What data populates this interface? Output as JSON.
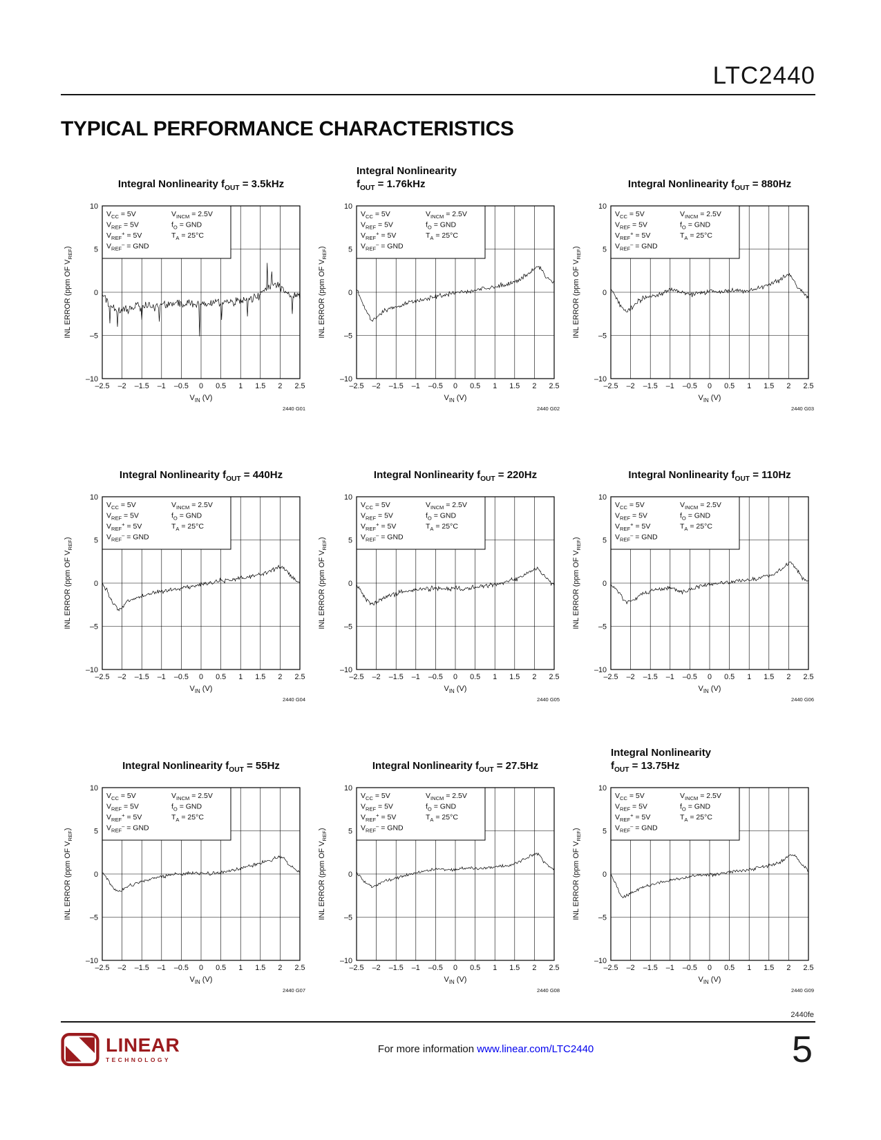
{
  "colors": {
    "accent_red": "#9b1b1e",
    "link_blue": "#0000ee"
  },
  "page": {
    "header": {
      "part_number": "LTC2440"
    },
    "section_title": "TYPICAL PERFORMANCE CHARACTERISTICS",
    "footer": {
      "doc_code": "2440fe",
      "info_text": "For more information ",
      "info_link": "www.linear.com/LTC2440",
      "page_number": "5",
      "logo_primary": "LINEAR",
      "logo_secondary": "TECHNOLOGY"
    }
  },
  "conditions": {
    "left": [
      "V_{CC} = 5V",
      "V_{REF} = 5V",
      "V_{REF}^{+} = 5V",
      "V_{REF}^{–} = GND"
    ],
    "right": [
      "V_{INCM} = 2.5V",
      "f_{O} = GND",
      "T_{A} = 25°C"
    ]
  },
  "axes": {
    "xlabel": "V_{IN} (V)",
    "ylabel": "INL ERROR (ppm OF V_{REF})",
    "xlim": [
      -2.5,
      2.5
    ],
    "ylim": [
      -10,
      10
    ],
    "xticks": [
      -2.5,
      -2,
      -1.5,
      -1,
      -0.5,
      0,
      0.5,
      1,
      1.5,
      2,
      2.5
    ],
    "xtick_labels": [
      "–2.5",
      "–2",
      "–1.5",
      "–1",
      "–0.5",
      "0",
      "0.5",
      "1",
      "1.5",
      "2",
      "2.5"
    ],
    "yticks": [
      10,
      5,
      0,
      -5,
      -10
    ],
    "ytick_labels": [
      "10",
      "5",
      "0",
      "–5",
      "–10"
    ],
    "grid": true
  },
  "chart_data": [
    {
      "type": "line",
      "fig_id": "2440 G01",
      "title_lines": [
        "Integral Nonlinearity f_{OUT} = 3.5kHz"
      ],
      "keypoints": [
        [
          -2.5,
          -0.4
        ],
        [
          -2.35,
          -1.3
        ],
        [
          -2.2,
          -1.9
        ],
        [
          -2.05,
          -2.2
        ],
        [
          -1.9,
          -2.1
        ],
        [
          -1.75,
          -1.8
        ],
        [
          -1.6,
          -1.6
        ],
        [
          -1.45,
          -1.7
        ],
        [
          -1.3,
          -1.5
        ],
        [
          -1.15,
          -1.6
        ],
        [
          -1.0,
          -1.4
        ],
        [
          -0.8,
          -1.5
        ],
        [
          -0.6,
          -1.3
        ],
        [
          -0.4,
          -1.4
        ],
        [
          -0.2,
          -1.3
        ],
        [
          0,
          -1.3
        ],
        [
          0.2,
          -1.4
        ],
        [
          0.4,
          -1.2
        ],
        [
          0.6,
          -1.3
        ],
        [
          0.8,
          -1.1
        ],
        [
          1.0,
          -1.0
        ],
        [
          1.2,
          -0.9
        ],
        [
          1.4,
          -0.6
        ],
        [
          1.6,
          0.2
        ],
        [
          1.75,
          0.8
        ],
        [
          1.9,
          0.9
        ],
        [
          2.0,
          0.6
        ],
        [
          2.1,
          0.3
        ],
        [
          2.25,
          -0.6
        ],
        [
          2.4,
          -0.4
        ],
        [
          2.5,
          -0.5
        ]
      ],
      "noise_ppm": 0.55,
      "spikes": [
        [
          -2.3,
          -3.6
        ],
        [
          -2.12,
          -4.0
        ],
        [
          -1.5,
          -3.2
        ],
        [
          -1.05,
          -3.4
        ],
        [
          -0.03,
          -5.1
        ],
        [
          0.52,
          -3.2
        ],
        [
          1.18,
          -2.8
        ],
        [
          1.68,
          3.4
        ],
        [
          1.78,
          2.4
        ],
        [
          2.3,
          -2.5
        ]
      ]
    },
    {
      "type": "line",
      "fig_id": "2440 G02",
      "title_lines": [
        "Integral Nonlinearity",
        "f_{OUT} = 1.76kHz"
      ],
      "keypoints": [
        [
          -2.5,
          0.3
        ],
        [
          -2.4,
          -0.6
        ],
        [
          -2.3,
          -1.8
        ],
        [
          -2.2,
          -2.7
        ],
        [
          -2.1,
          -3.2
        ],
        [
          -2.0,
          -3.0
        ],
        [
          -1.9,
          -2.6
        ],
        [
          -1.8,
          -2.2
        ],
        [
          -1.7,
          -2.0
        ],
        [
          -1.55,
          -1.7
        ],
        [
          -1.4,
          -1.5
        ],
        [
          -1.25,
          -1.3
        ],
        [
          -1.1,
          -1.1
        ],
        [
          -0.95,
          -1.0
        ],
        [
          -0.8,
          -0.8
        ],
        [
          -0.6,
          -0.6
        ],
        [
          -0.4,
          -0.4
        ],
        [
          -0.2,
          -0.2
        ],
        [
          0,
          -0.1
        ],
        [
          0.2,
          0.1
        ],
        [
          0.4,
          0.2
        ],
        [
          0.6,
          0.3
        ],
        [
          0.8,
          0.5
        ],
        [
          1.0,
          0.6
        ],
        [
          1.2,
          0.8
        ],
        [
          1.4,
          1.0
        ],
        [
          1.6,
          1.4
        ],
        [
          1.8,
          2.0
        ],
        [
          1.95,
          2.6
        ],
        [
          2.05,
          3.0
        ],
        [
          2.15,
          2.8
        ],
        [
          2.3,
          1.8
        ],
        [
          2.4,
          1.3
        ],
        [
          2.5,
          1.1
        ]
      ],
      "noise_ppm": 0.3,
      "spikes": []
    },
    {
      "type": "line",
      "fig_id": "2440 G03",
      "title_lines": [
        "Integral Nonlinearity f_{OUT} = 880Hz"
      ],
      "keypoints": [
        [
          -2.5,
          0.4
        ],
        [
          -2.4,
          -0.3
        ],
        [
          -2.3,
          -1.2
        ],
        [
          -2.2,
          -1.9
        ],
        [
          -2.1,
          -2.3
        ],
        [
          -2.0,
          -1.9
        ],
        [
          -1.9,
          -1.4
        ],
        [
          -1.8,
          -1.0
        ],
        [
          -1.65,
          -0.7
        ],
        [
          -1.5,
          -0.5
        ],
        [
          -1.35,
          -0.4
        ],
        [
          -1.2,
          -0.2
        ],
        [
          -1.05,
          0.2
        ],
        [
          -0.9,
          0.3
        ],
        [
          -0.75,
          0.1
        ],
        [
          -0.6,
          -0.1
        ],
        [
          -0.45,
          -0.2
        ],
        [
          -0.3,
          -0.1
        ],
        [
          -0.15,
          0.0
        ],
        [
          0,
          0.1
        ],
        [
          0.2,
          0.0
        ],
        [
          0.4,
          0.1
        ],
        [
          0.6,
          0.2
        ],
        [
          0.8,
          0.1
        ],
        [
          1.0,
          0.2
        ],
        [
          1.2,
          0.4
        ],
        [
          1.4,
          0.7
        ],
        [
          1.6,
          1.0
        ],
        [
          1.8,
          1.5
        ],
        [
          1.95,
          2.0
        ],
        [
          2.05,
          1.9
        ],
        [
          2.2,
          0.8
        ],
        [
          2.35,
          0.0
        ],
        [
          2.5,
          -0.6
        ]
      ],
      "noise_ppm": 0.3,
      "spikes": []
    },
    {
      "type": "line",
      "fig_id": "2440 G04",
      "title_lines": [
        "Integral Nonlinearity f_{OUT} = 440Hz"
      ],
      "keypoints": [
        [
          -2.5,
          0.1
        ],
        [
          -2.4,
          -0.7
        ],
        [
          -2.3,
          -1.7
        ],
        [
          -2.2,
          -2.5
        ],
        [
          -2.1,
          -3.0
        ],
        [
          -2.0,
          -2.8
        ],
        [
          -1.9,
          -2.3
        ],
        [
          -1.8,
          -2.0
        ],
        [
          -1.65,
          -1.7
        ],
        [
          -1.5,
          -1.5
        ],
        [
          -1.35,
          -1.3
        ],
        [
          -1.2,
          -1.1
        ],
        [
          -1.05,
          -1.0
        ],
        [
          -0.9,
          -0.9
        ],
        [
          -0.75,
          -0.8
        ],
        [
          -0.6,
          -0.6
        ],
        [
          -0.45,
          -0.5
        ],
        [
          -0.3,
          -0.4
        ],
        [
          -0.15,
          -0.3
        ],
        [
          0,
          -0.1
        ],
        [
          0.2,
          0.0
        ],
        [
          0.4,
          0.2
        ],
        [
          0.6,
          0.3
        ],
        [
          0.8,
          0.4
        ],
        [
          1.0,
          0.6
        ],
        [
          1.2,
          0.7
        ],
        [
          1.4,
          0.9
        ],
        [
          1.6,
          1.2
        ],
        [
          1.8,
          1.5
        ],
        [
          1.95,
          1.8
        ],
        [
          2.05,
          1.9
        ],
        [
          2.2,
          1.2
        ],
        [
          2.35,
          0.5
        ],
        [
          2.5,
          0.0
        ]
      ],
      "noise_ppm": 0.28,
      "spikes": []
    },
    {
      "type": "line",
      "fig_id": "2440 G05",
      "title_lines": [
        "Integral Nonlinearity f_{OUT} = 220Hz"
      ],
      "keypoints": [
        [
          -2.5,
          -0.2
        ],
        [
          -2.4,
          -0.9
        ],
        [
          -2.3,
          -1.6
        ],
        [
          -2.2,
          -2.2
        ],
        [
          -2.1,
          -2.4
        ],
        [
          -2.0,
          -2.2
        ],
        [
          -1.9,
          -1.9
        ],
        [
          -1.8,
          -1.7
        ],
        [
          -1.65,
          -1.4
        ],
        [
          -1.5,
          -1.2
        ],
        [
          -1.35,
          -1.0
        ],
        [
          -1.2,
          -0.9
        ],
        [
          -1.05,
          -0.8
        ],
        [
          -0.9,
          -0.7
        ],
        [
          -0.75,
          -0.7
        ],
        [
          -0.6,
          -0.6
        ],
        [
          -0.45,
          -0.7
        ],
        [
          -0.3,
          -0.6
        ],
        [
          -0.15,
          -0.7
        ],
        [
          0,
          -0.6
        ],
        [
          0.2,
          -0.7
        ],
        [
          0.4,
          -0.5
        ],
        [
          0.6,
          -0.4
        ],
        [
          0.8,
          -0.3
        ],
        [
          1.0,
          -0.2
        ],
        [
          1.2,
          0.0
        ],
        [
          1.4,
          0.3
        ],
        [
          1.6,
          0.6
        ],
        [
          1.8,
          1.1
        ],
        [
          1.95,
          1.5
        ],
        [
          2.1,
          1.6
        ],
        [
          2.25,
          0.8
        ],
        [
          2.4,
          0.1
        ],
        [
          2.5,
          -0.2
        ]
      ],
      "noise_ppm": 0.3,
      "spikes": []
    },
    {
      "type": "line",
      "fig_id": "2440 G06",
      "title_lines": [
        "Integral Nonlinearity f_{OUT} = 110Hz"
      ],
      "keypoints": [
        [
          -2.5,
          -0.1
        ],
        [
          -2.4,
          -0.5
        ],
        [
          -2.3,
          -1.1
        ],
        [
          -2.2,
          -1.8
        ],
        [
          -2.1,
          -2.3
        ],
        [
          -2.0,
          -2.1
        ],
        [
          -1.9,
          -1.8
        ],
        [
          -1.8,
          -1.5
        ],
        [
          -1.65,
          -1.2
        ],
        [
          -1.5,
          -1.0
        ],
        [
          -1.35,
          -0.8
        ],
        [
          -1.2,
          -0.6
        ],
        [
          -1.05,
          -0.5
        ],
        [
          -0.9,
          -0.7
        ],
        [
          -0.75,
          -0.9
        ],
        [
          -0.6,
          -1.0
        ],
        [
          -0.45,
          -0.7
        ],
        [
          -0.3,
          -0.4
        ],
        [
          -0.15,
          -0.3
        ],
        [
          0,
          -0.2
        ],
        [
          0.2,
          -0.1
        ],
        [
          0.4,
          0.1
        ],
        [
          0.6,
          0.2
        ],
        [
          0.8,
          0.3
        ],
        [
          1.0,
          0.4
        ],
        [
          1.2,
          0.5
        ],
        [
          1.4,
          0.7
        ],
        [
          1.6,
          1.0
        ],
        [
          1.8,
          1.5
        ],
        [
          1.95,
          2.1
        ],
        [
          2.05,
          2.4
        ],
        [
          2.2,
          1.6
        ],
        [
          2.35,
          0.6
        ],
        [
          2.5,
          0.2
        ]
      ],
      "noise_ppm": 0.25,
      "spikes": []
    },
    {
      "type": "line",
      "fig_id": "2440 G07",
      "title_lines": [
        "Integral Nonlinearity f_{OUT} = 55Hz"
      ],
      "keypoints": [
        [
          -2.5,
          0.2
        ],
        [
          -2.4,
          -0.4
        ],
        [
          -2.3,
          -1.1
        ],
        [
          -2.2,
          -1.7
        ],
        [
          -2.1,
          -2.0
        ],
        [
          -2.0,
          -1.9
        ],
        [
          -1.9,
          -1.6
        ],
        [
          -1.8,
          -1.4
        ],
        [
          -1.65,
          -1.1
        ],
        [
          -1.5,
          -0.9
        ],
        [
          -1.35,
          -0.7
        ],
        [
          -1.2,
          -0.5
        ],
        [
          -1.05,
          -0.3
        ],
        [
          -0.9,
          -0.2
        ],
        [
          -0.75,
          -0.1
        ],
        [
          -0.6,
          0.0
        ],
        [
          -0.45,
          0.0
        ],
        [
          -0.3,
          0.1
        ],
        [
          -0.15,
          0.1
        ],
        [
          0,
          0.0
        ],
        [
          0.2,
          0.1
        ],
        [
          0.4,
          0.1
        ],
        [
          0.6,
          0.3
        ],
        [
          0.8,
          0.4
        ],
        [
          1.0,
          0.6
        ],
        [
          1.2,
          0.9
        ],
        [
          1.4,
          1.1
        ],
        [
          1.6,
          1.4
        ],
        [
          1.8,
          1.7
        ],
        [
          1.95,
          2.0
        ],
        [
          2.1,
          1.8
        ],
        [
          2.25,
          1.0
        ],
        [
          2.4,
          0.4
        ],
        [
          2.5,
          0.2
        ]
      ],
      "noise_ppm": 0.22,
      "spikes": []
    },
    {
      "type": "line",
      "fig_id": "2440 G08",
      "title_lines": [
        "Integral Nonlinearity f_{OUT} = 27.5Hz"
      ],
      "keypoints": [
        [
          -2.5,
          0.1
        ],
        [
          -2.4,
          -0.4
        ],
        [
          -2.3,
          -0.9
        ],
        [
          -2.2,
          -1.3
        ],
        [
          -2.1,
          -1.5
        ],
        [
          -2.0,
          -1.3
        ],
        [
          -1.9,
          -1.1
        ],
        [
          -1.8,
          -0.9
        ],
        [
          -1.65,
          -0.7
        ],
        [
          -1.5,
          -0.5
        ],
        [
          -1.35,
          -0.3
        ],
        [
          -1.2,
          -0.1
        ],
        [
          -1.05,
          0.1
        ],
        [
          -0.9,
          0.2
        ],
        [
          -0.75,
          0.4
        ],
        [
          -0.6,
          0.5
        ],
        [
          -0.45,
          0.6
        ],
        [
          -0.3,
          0.5
        ],
        [
          -0.15,
          0.4
        ],
        [
          0,
          0.5
        ],
        [
          0.2,
          0.6
        ],
        [
          0.4,
          0.7
        ],
        [
          0.6,
          0.6
        ],
        [
          0.8,
          0.7
        ],
        [
          1.0,
          0.8
        ],
        [
          1.2,
          0.9
        ],
        [
          1.4,
          1.1
        ],
        [
          1.6,
          1.4
        ],
        [
          1.8,
          1.8
        ],
        [
          1.95,
          2.2
        ],
        [
          2.1,
          2.4
        ],
        [
          2.25,
          1.4
        ],
        [
          2.4,
          0.8
        ],
        [
          2.5,
          0.6
        ]
      ],
      "noise_ppm": 0.22,
      "spikes": []
    },
    {
      "type": "line",
      "fig_id": "2440 G09",
      "title_lines": [
        "Integral Nonlinearity",
        "f_{OUT} = 13.75Hz"
      ],
      "keypoints": [
        [
          -2.5,
          -0.1
        ],
        [
          -2.4,
          -1.0
        ],
        [
          -2.3,
          -2.0
        ],
        [
          -2.2,
          -2.7
        ],
        [
          -2.1,
          -2.5
        ],
        [
          -2.0,
          -2.2
        ],
        [
          -1.9,
          -2.0
        ],
        [
          -1.8,
          -1.8
        ],
        [
          -1.65,
          -1.5
        ],
        [
          -1.5,
          -1.3
        ],
        [
          -1.35,
          -1.1
        ],
        [
          -1.2,
          -0.9
        ],
        [
          -1.05,
          -0.8
        ],
        [
          -0.9,
          -0.6
        ],
        [
          -0.75,
          -0.5
        ],
        [
          -0.6,
          -0.4
        ],
        [
          -0.45,
          -0.3
        ],
        [
          -0.3,
          -0.2
        ],
        [
          -0.15,
          -0.1
        ],
        [
          0,
          -0.1
        ],
        [
          0.2,
          0.0
        ],
        [
          0.4,
          0.2
        ],
        [
          0.6,
          0.3
        ],
        [
          0.8,
          0.4
        ],
        [
          1.0,
          0.5
        ],
        [
          1.2,
          0.7
        ],
        [
          1.4,
          0.9
        ],
        [
          1.6,
          1.1
        ],
        [
          1.8,
          1.4
        ],
        [
          1.95,
          1.9
        ],
        [
          2.05,
          2.3
        ],
        [
          2.2,
          2.0
        ],
        [
          2.35,
          1.0
        ],
        [
          2.5,
          0.4
        ]
      ],
      "noise_ppm": 0.22,
      "spikes": []
    }
  ]
}
